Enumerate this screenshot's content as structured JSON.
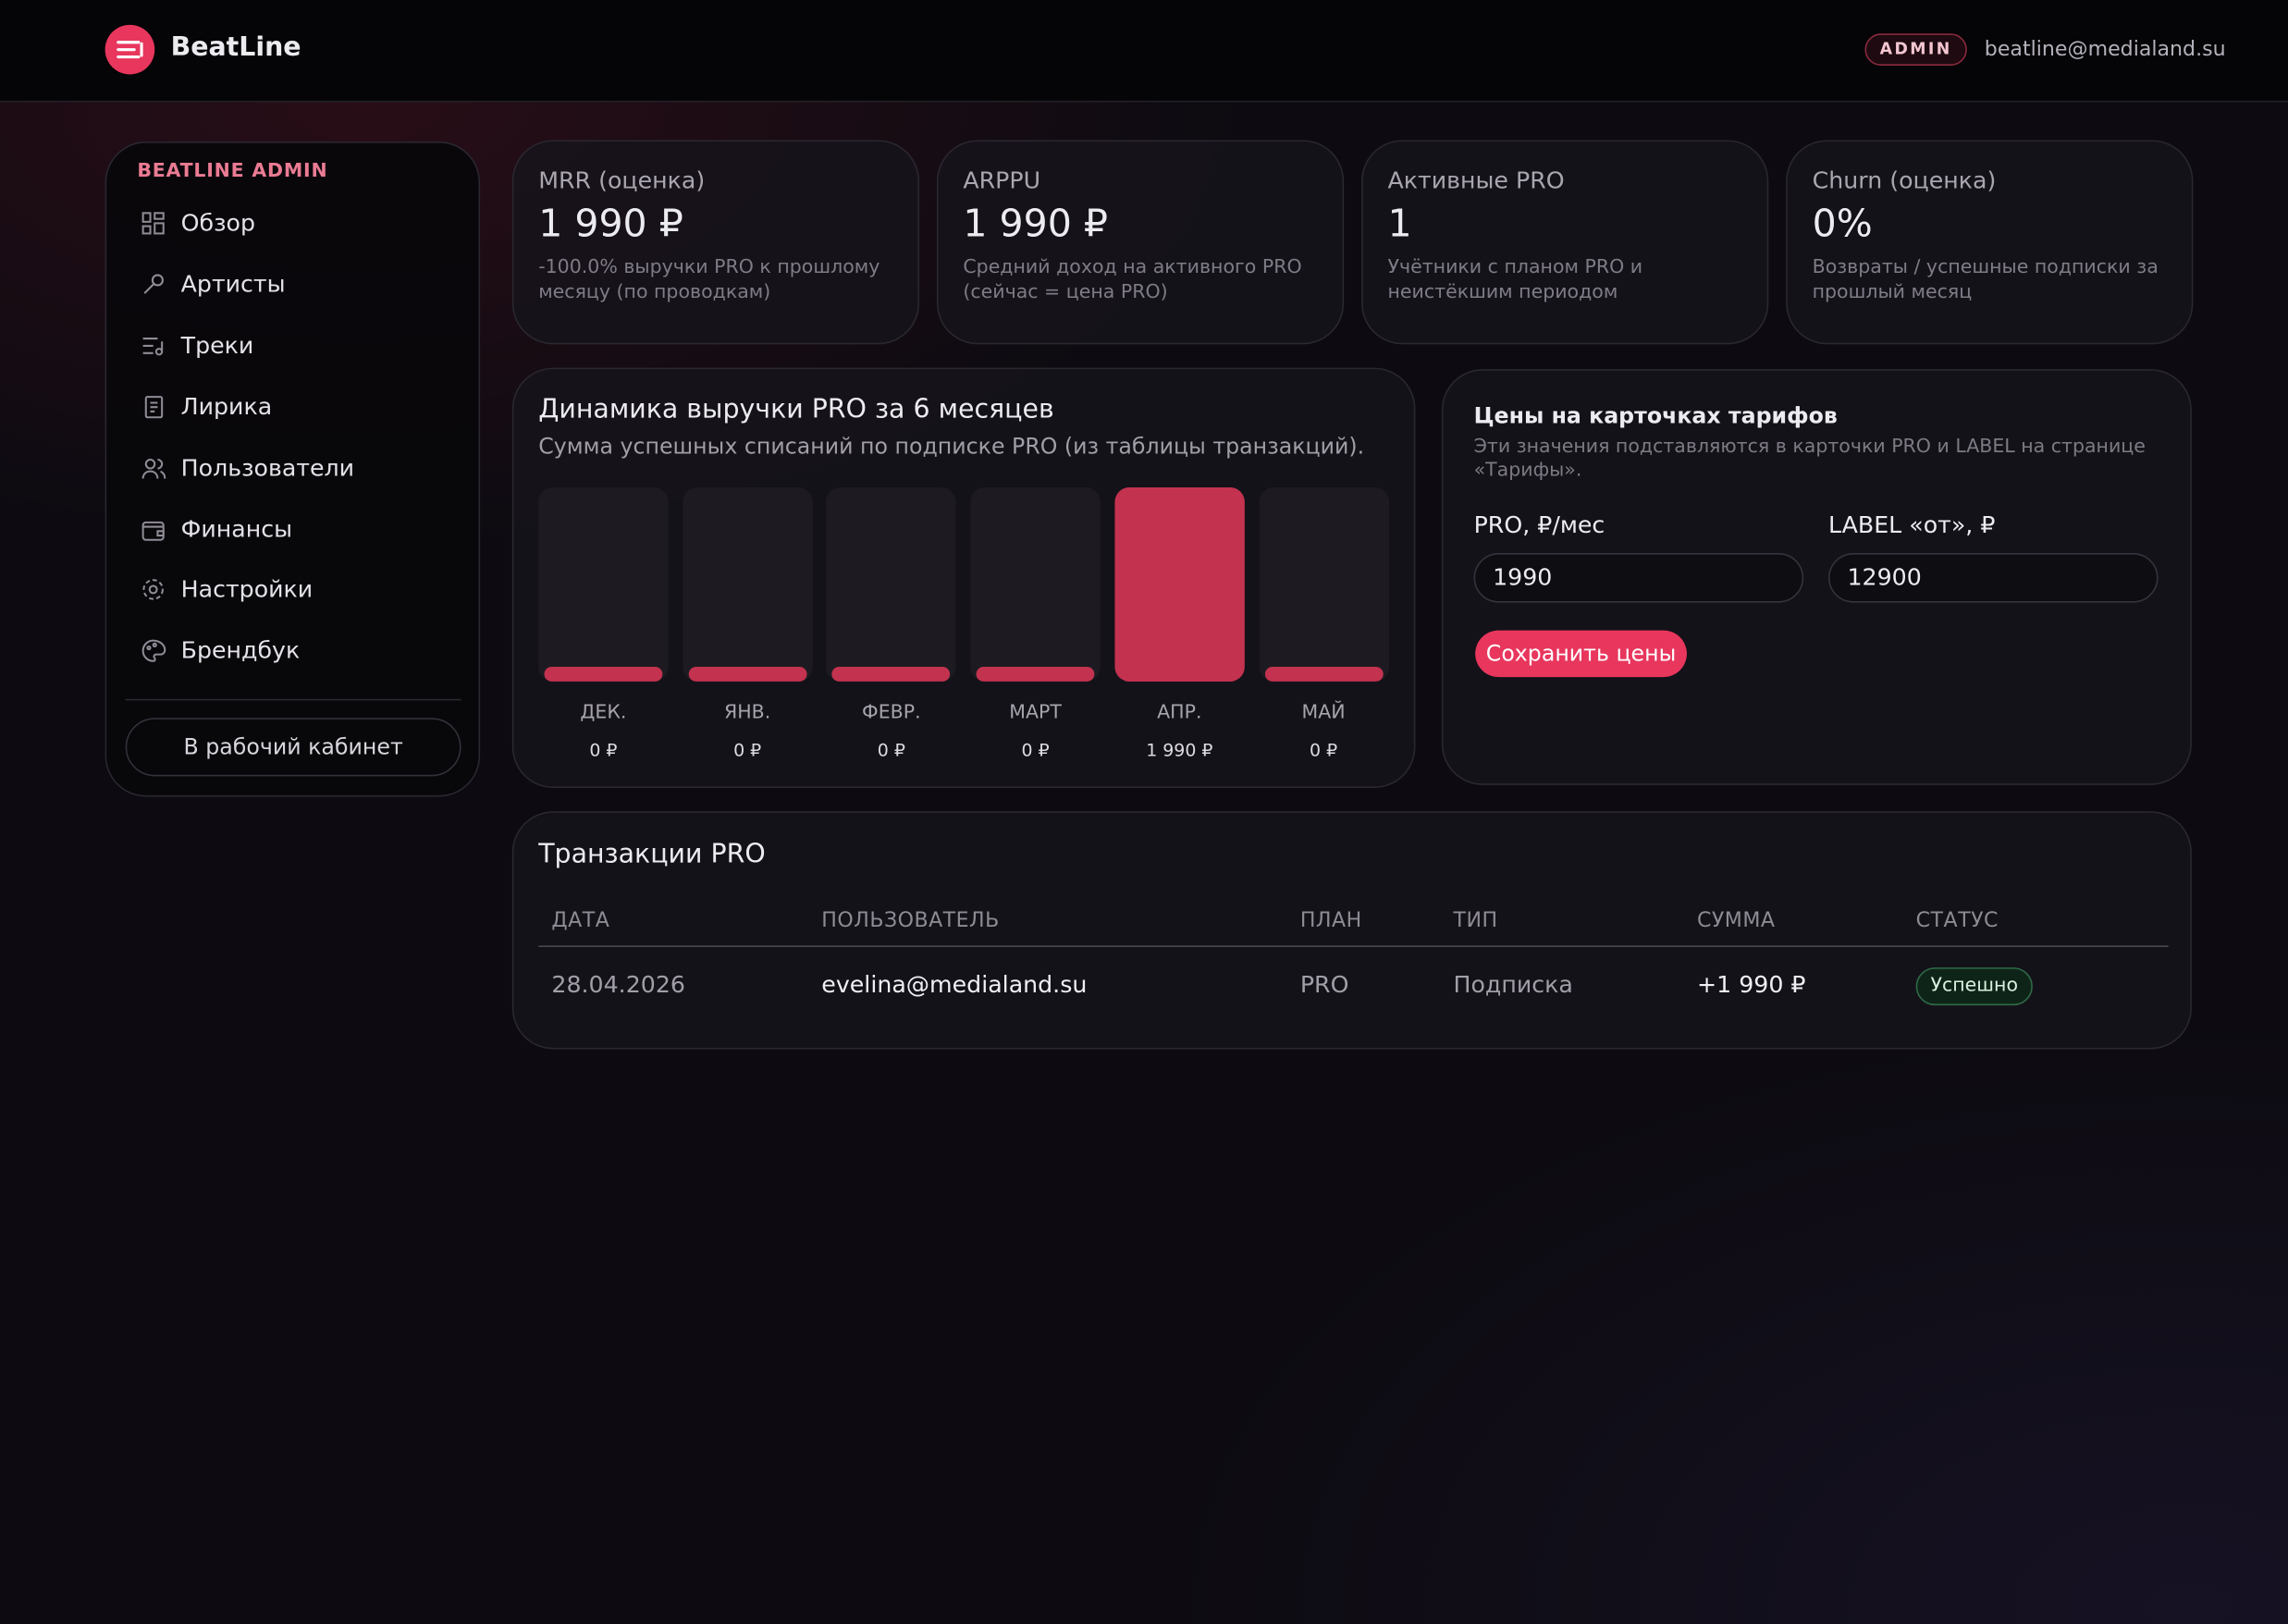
{
  "header": {
    "brand": "BeatLine",
    "role": "ADMIN",
    "email": "beatline@medialand.su"
  },
  "sidebar": {
    "title": "BEATLINE ADMIN",
    "items": [
      "Обзор",
      "Артисты",
      "Треки",
      "Лирика",
      "Пользователи",
      "Финансы",
      "Настройки",
      "Брендбук"
    ],
    "button": "В рабочий кабинет"
  },
  "kpis": [
    {
      "label": "MRR (оценка)",
      "value": "1 990 ₽",
      "note": "-100.0% выручки PRO к прошлому месяцу (по проводкам)"
    },
    {
      "label": "ARPPU",
      "value": "1 990 ₽",
      "note": "Средний доход на активного PRO (сейчас = цена PRO)"
    },
    {
      "label": "Активные PRO",
      "value": "1",
      "note": "Учётники с планом PRO и неистёкшим периодом"
    },
    {
      "label": "Churn (оценка)",
      "value": "0%",
      "note": "Возвраты / успешные подписки за прошлый месяц"
    }
  ],
  "chart_data": {
    "type": "bar",
    "title": "Динамика выручки PRO за 6 месяцев",
    "subtitle": "Сумма успешных списаний по подписке PRO (из таблицы транзакций).",
    "categories": [
      "ДЕК.",
      "ЯНВ.",
      "ФЕВР.",
      "МАРТ",
      "АПР.",
      "МАЙ"
    ],
    "values": [
      0,
      0,
      0,
      0,
      1990,
      0
    ],
    "value_labels": [
      "0 ₽",
      "0 ₽",
      "0 ₽",
      "0 ₽",
      "1 990 ₽",
      "0 ₽"
    ],
    "color": "#c3324f"
  },
  "prices": {
    "title": "Цены на карточках тарифов",
    "description": "Эти значения подставляются в карточки PRO и LABEL на странице «Тарифы».",
    "fields": [
      {
        "label": "PRO, ₽/мес",
        "value": "1990"
      },
      {
        "label": "LABEL «от», ₽",
        "value": "12900"
      }
    ],
    "button": "Сохранить цены"
  },
  "transactions": {
    "title": "Транзакции PRO",
    "columns": [
      "ДАТА",
      "ПОЛЬЗОВАТЕЛЬ",
      "ПЛАН",
      "ТИП",
      "СУММА",
      "СТАТУС"
    ],
    "rows": [
      [
        "28.04.2026",
        "evelina@medialand.su",
        "PRO",
        "Подписка",
        "+1 990 ₽",
        "Успешно"
      ]
    ]
  }
}
